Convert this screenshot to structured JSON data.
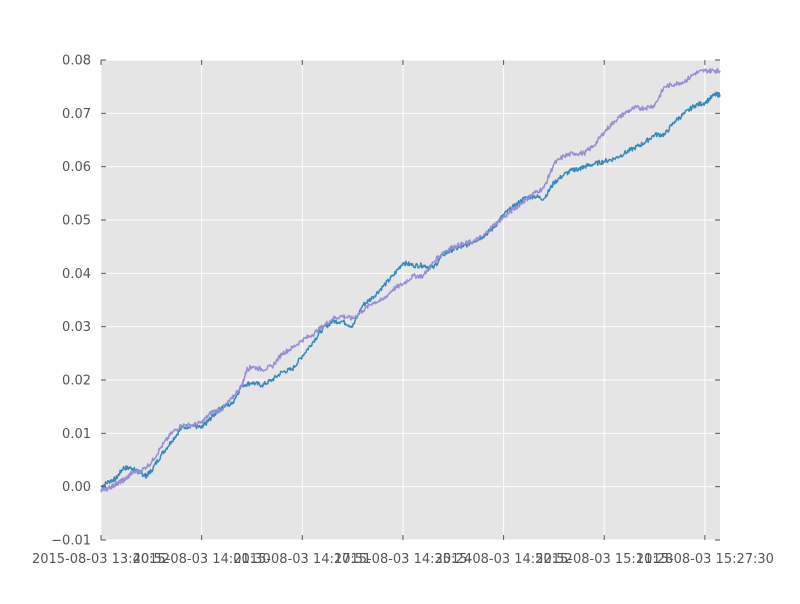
{
  "chart_data": {
    "type": "line",
    "title": "",
    "xlabel": "",
    "ylabel": "",
    "ylim": [
      -0.01,
      0.08
    ],
    "yticks": [
      -0.01,
      0.0,
      0.01,
      0.02,
      0.03,
      0.04,
      0.05,
      0.06,
      0.07,
      0.08
    ],
    "ytick_labels": [
      "−0.01",
      "0.00",
      "0.01",
      "0.02",
      "0.03",
      "0.04",
      "0.05",
      "0.06",
      "0.07",
      "0.08"
    ],
    "xticks": [
      0,
      1,
      2,
      3,
      4,
      5,
      6
    ],
    "xtick_labels": [
      "2015-08-03 13:40:52",
      "2015-08-03 14:01:30",
      "2015-08-03 14:17:51",
      "2015-08-03 14:35:24",
      "2015-08-03 14:52:52",
      "2015-08-03 15:11:28",
      "2015-08-03 15:27:30"
    ],
    "xlim": [
      0,
      6.15
    ],
    "grid": true,
    "background_color": "#e5e5e5",
    "grid_color": "#ffffff",
    "series": [
      {
        "color": "#348abd",
        "x": [
          0,
          0.08,
          0.15,
          0.22,
          0.3,
          0.35,
          0.4,
          0.45,
          0.5,
          0.6,
          0.7,
          0.8,
          0.9,
          1.0,
          1.05,
          1.1,
          1.2,
          1.3,
          1.4,
          1.5,
          1.6,
          1.7,
          1.8,
          1.9,
          2.0,
          2.1,
          2.2,
          2.3,
          2.4,
          2.5,
          2.6,
          2.7,
          2.8,
          2.9,
          3.0,
          3.1,
          3.2,
          3.3,
          3.4,
          3.5,
          3.6,
          3.7,
          3.8,
          3.9,
          4.0,
          4.1,
          4.2,
          4.3,
          4.4,
          4.5,
          4.6,
          4.7,
          4.75,
          4.8,
          4.9,
          5.0,
          5.1,
          5.2,
          5.3,
          5.4,
          5.5,
          5.6,
          5.7,
          5.8,
          5.9,
          6.0,
          6.1,
          6.15
        ],
        "y": [
          0.0,
          0.001,
          0.0015,
          0.0035,
          0.0035,
          0.003,
          0.0025,
          0.002,
          0.003,
          0.006,
          0.0085,
          0.011,
          0.0115,
          0.011,
          0.012,
          0.013,
          0.015,
          0.0155,
          0.019,
          0.0195,
          0.019,
          0.02,
          0.0215,
          0.022,
          0.0245,
          0.027,
          0.0295,
          0.031,
          0.031,
          0.03,
          0.034,
          0.0355,
          0.0375,
          0.0395,
          0.042,
          0.0415,
          0.0415,
          0.041,
          0.0435,
          0.0445,
          0.045,
          0.046,
          0.047,
          0.0485,
          0.051,
          0.0525,
          0.054,
          0.0545,
          0.054,
          0.057,
          0.0585,
          0.0595,
          0.0595,
          0.06,
          0.0605,
          0.061,
          0.0615,
          0.0625,
          0.0635,
          0.0645,
          0.066,
          0.066,
          0.0685,
          0.07,
          0.0715,
          0.072,
          0.0735,
          0.0735
        ]
      },
      {
        "color": "#988ed5",
        "x": [
          0,
          0.05,
          0.1,
          0.15,
          0.2,
          0.25,
          0.3,
          0.4,
          0.5,
          0.6,
          0.7,
          0.8,
          0.9,
          1.0,
          1.1,
          1.2,
          1.3,
          1.4,
          1.45,
          1.5,
          1.6,
          1.7,
          1.8,
          1.9,
          2.0,
          2.1,
          2.2,
          2.3,
          2.4,
          2.5,
          2.6,
          2.7,
          2.8,
          2.9,
          3.0,
          3.1,
          3.2,
          3.3,
          3.4,
          3.5,
          3.6,
          3.7,
          3.8,
          3.9,
          4.0,
          4.1,
          4.2,
          4.3,
          4.4,
          4.5,
          4.6,
          4.7,
          4.8,
          4.9,
          5.0,
          5.1,
          5.2,
          5.3,
          5.4,
          5.5,
          5.6,
          5.7,
          5.8,
          5.9,
          6.0,
          6.1,
          6.15
        ],
        "y": [
          -0.0005,
          -0.0005,
          0.0,
          0.0005,
          0.001,
          0.0015,
          0.0025,
          0.003,
          0.0045,
          0.0075,
          0.01,
          0.0115,
          0.0115,
          0.012,
          0.014,
          0.0145,
          0.0165,
          0.019,
          0.022,
          0.0225,
          0.022,
          0.0225,
          0.025,
          0.026,
          0.0275,
          0.0285,
          0.03,
          0.0315,
          0.032,
          0.0315,
          0.033,
          0.0345,
          0.035,
          0.037,
          0.038,
          0.0395,
          0.0395,
          0.042,
          0.044,
          0.045,
          0.0455,
          0.046,
          0.047,
          0.049,
          0.0505,
          0.052,
          0.0535,
          0.055,
          0.056,
          0.0605,
          0.062,
          0.0625,
          0.0625,
          0.064,
          0.0665,
          0.0685,
          0.07,
          0.071,
          0.071,
          0.0715,
          0.075,
          0.0755,
          0.076,
          0.0775,
          0.078,
          0.078,
          0.078
        ]
      }
    ]
  }
}
